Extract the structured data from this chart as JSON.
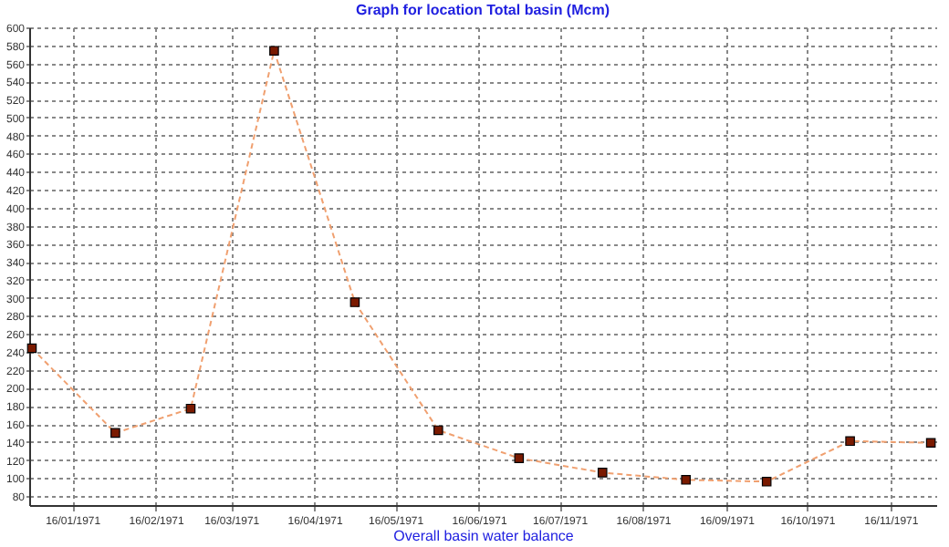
{
  "chart_data": {
    "type": "line",
    "title": "Graph for location Total basin (Mcm)",
    "xlabel": "Overall basin water balance",
    "x": [
      "1971-01-01",
      "1971-02-01",
      "1971-03-01",
      "1971-04-01",
      "1971-05-01",
      "1971-06-01",
      "1971-07-01",
      "1971-08-01",
      "1971-09-01",
      "1971-10-01",
      "1971-11-01",
      "1971-12-01"
    ],
    "series": [
      {
        "color": "#f0a070",
        "values": [
          244,
          150,
          177,
          574,
          295,
          153,
          122,
          106,
          98,
          96,
          141,
          139
        ]
      }
    ],
    "xlim": [
      "1970-12-31",
      "1971-12-03"
    ],
    "xticks": [
      {
        "value": "1971-01-16",
        "label": "16/01/1971"
      },
      {
        "value": "1971-02-16",
        "label": "16/02/1971"
      },
      {
        "value": "1971-03-16",
        "label": "16/03/1971"
      },
      {
        "value": "1971-04-16",
        "label": "16/04/1971"
      },
      {
        "value": "1971-05-16",
        "label": "16/05/1971"
      },
      {
        "value": "1971-06-16",
        "label": "16/06/1971"
      },
      {
        "value": "1971-07-16",
        "label": "16/07/1971"
      },
      {
        "value": "1971-08-16",
        "label": "16/08/1971"
      },
      {
        "value": "1971-09-16",
        "label": "16/09/1971"
      },
      {
        "value": "1971-10-16",
        "label": "16/10/1971"
      },
      {
        "value": "1971-11-16",
        "label": "16/11/1971"
      }
    ],
    "ylim": [
      70,
      600
    ],
    "yticks": [
      80,
      100,
      120,
      140,
      160,
      180,
      200,
      220,
      240,
      260,
      280,
      300,
      320,
      340,
      360,
      380,
      400,
      420,
      440,
      460,
      480,
      500,
      520,
      540,
      560,
      580,
      600
    ],
    "grid": true,
    "marker": "square",
    "line_style": "dashed"
  }
}
